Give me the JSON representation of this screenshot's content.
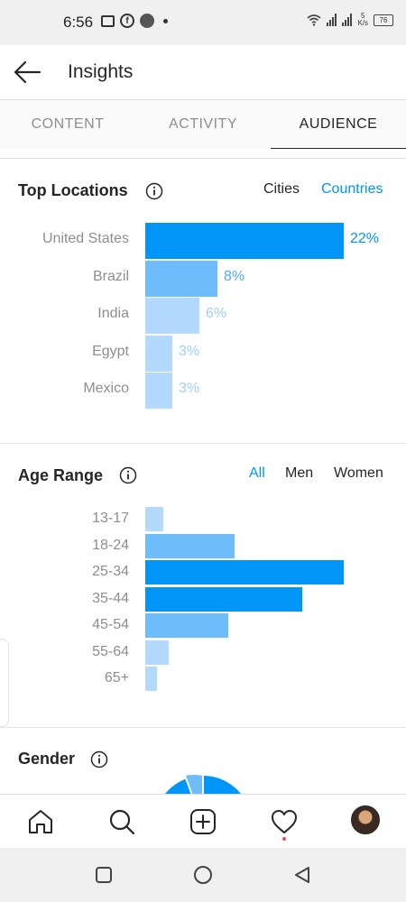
{
  "status_bar": {
    "time": "6:56",
    "network_speed_value": "5",
    "network_speed_unit": "K/s",
    "battery": "76"
  },
  "header": {
    "title": "Insights",
    "back_icon": "arrow-left-icon"
  },
  "tabs": [
    {
      "label": "CONTENT",
      "active": false
    },
    {
      "label": "ACTIVITY",
      "active": false
    },
    {
      "label": "AUDIENCE",
      "active": true
    }
  ],
  "top_locations": {
    "title": "Top Locations",
    "filters": [
      {
        "label": "Cities",
        "active": false
      },
      {
        "label": "Countries",
        "active": true
      }
    ],
    "chart_data": {
      "type": "bar",
      "orientation": "horizontal",
      "categories": [
        "United States",
        "Brazil",
        "India",
        "Egypt",
        "Mexico"
      ],
      "values": [
        22,
        8,
        6,
        3,
        3
      ],
      "labels": [
        "22%",
        "8%",
        "6%",
        "3%",
        "3%"
      ],
      "colors": [
        "#0095f6",
        "#6ebcfa",
        "#b3dafc",
        "#b3dafc",
        "#b3dafc"
      ]
    }
  },
  "age_range": {
    "title": "Age Range",
    "filters": [
      {
        "label": "All",
        "active": true
      },
      {
        "label": "Men",
        "active": false
      },
      {
        "label": "Women",
        "active": false
      }
    ],
    "chart_data": {
      "type": "bar",
      "orientation": "horizontal",
      "categories": [
        "13-17",
        "18-24",
        "25-34",
        "35-44",
        "45-54",
        "55-64",
        "65+"
      ],
      "values": [
        9,
        45,
        100,
        79,
        42,
        12,
        6
      ],
      "colors": [
        "#b3dafc",
        "#6ebcfa",
        "#0095f6",
        "#0095f6",
        "#6ebcfa",
        "#b3dafc",
        "#b3dafc"
      ]
    }
  },
  "gender": {
    "title": "Gender"
  },
  "colors": {
    "accent": "#0095f6",
    "medium": "#6ebcfa",
    "light": "#b3dafc",
    "text": "#262626",
    "muted": "#8e8e8e"
  },
  "bottom_nav": [
    "home-icon",
    "search-icon",
    "add-post-icon",
    "activity-heart-icon",
    "profile-avatar"
  ]
}
